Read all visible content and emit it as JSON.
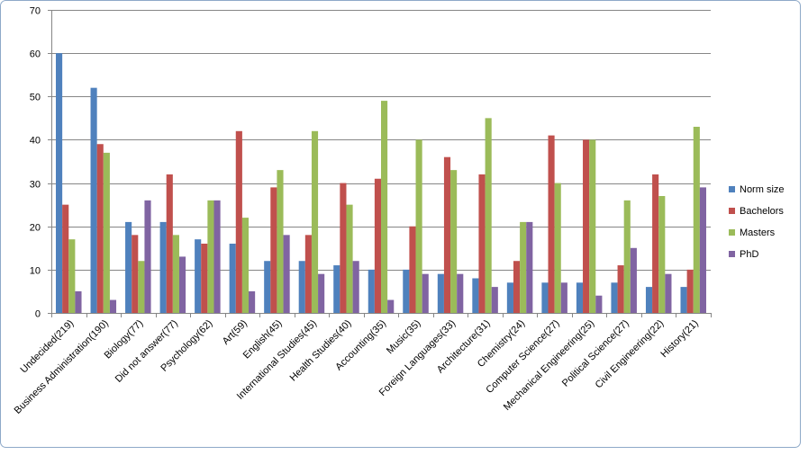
{
  "colors": {
    "frame_border": "#8ea9c8",
    "grid": "#868686",
    "axis": "#868686"
  },
  "chart_data": {
    "type": "bar",
    "ylim": [
      0,
      70
    ],
    "yticks": [
      "0",
      "10",
      "20",
      "30",
      "40",
      "50",
      "60",
      "70"
    ],
    "grid": true,
    "legend_position": "right",
    "categories": [
      "Undecided(219)",
      "Business Administration(190)",
      "Biology(77)",
      "Did not answer(77)",
      "Psychology(62)",
      "Art(59)",
      "English(45)",
      "International Studies(45)",
      "Health Studies(40)",
      "Accounting(35)",
      "Music(35)",
      "Foreign Languages(33)",
      "Architecture(31)",
      "Chemistry(24)",
      "Computer Science(27)",
      "Mechanical Engineering(25)",
      "Political Science(27)",
      "Civil Engineering(22)",
      "History(21)"
    ],
    "series": [
      {
        "name": "Norm size",
        "color": "#4f81bd",
        "values": [
          60,
          52,
          21,
          21,
          17,
          16,
          12,
          12,
          11,
          10,
          10,
          9,
          8,
          7,
          7,
          7,
          7,
          6,
          6
        ]
      },
      {
        "name": "Bachelors",
        "color": "#c0504d",
        "values": [
          25,
          39,
          18,
          32,
          16,
          42,
          29,
          18,
          30,
          31,
          20,
          36,
          32,
          12,
          41,
          40,
          11,
          32,
          10
        ]
      },
      {
        "name": "Masters",
        "color": "#9bbb59",
        "values": [
          17,
          37,
          12,
          18,
          26,
          22,
          33,
          42,
          25,
          49,
          40,
          33,
          45,
          21,
          30,
          40,
          26,
          27,
          43
        ]
      },
      {
        "name": "PhD",
        "color": "#8064a2",
        "values": [
          5,
          3,
          26,
          13,
          26,
          5,
          18,
          9,
          12,
          3,
          9,
          9,
          6,
          21,
          7,
          4,
          15,
          9,
          29
        ]
      }
    ]
  }
}
